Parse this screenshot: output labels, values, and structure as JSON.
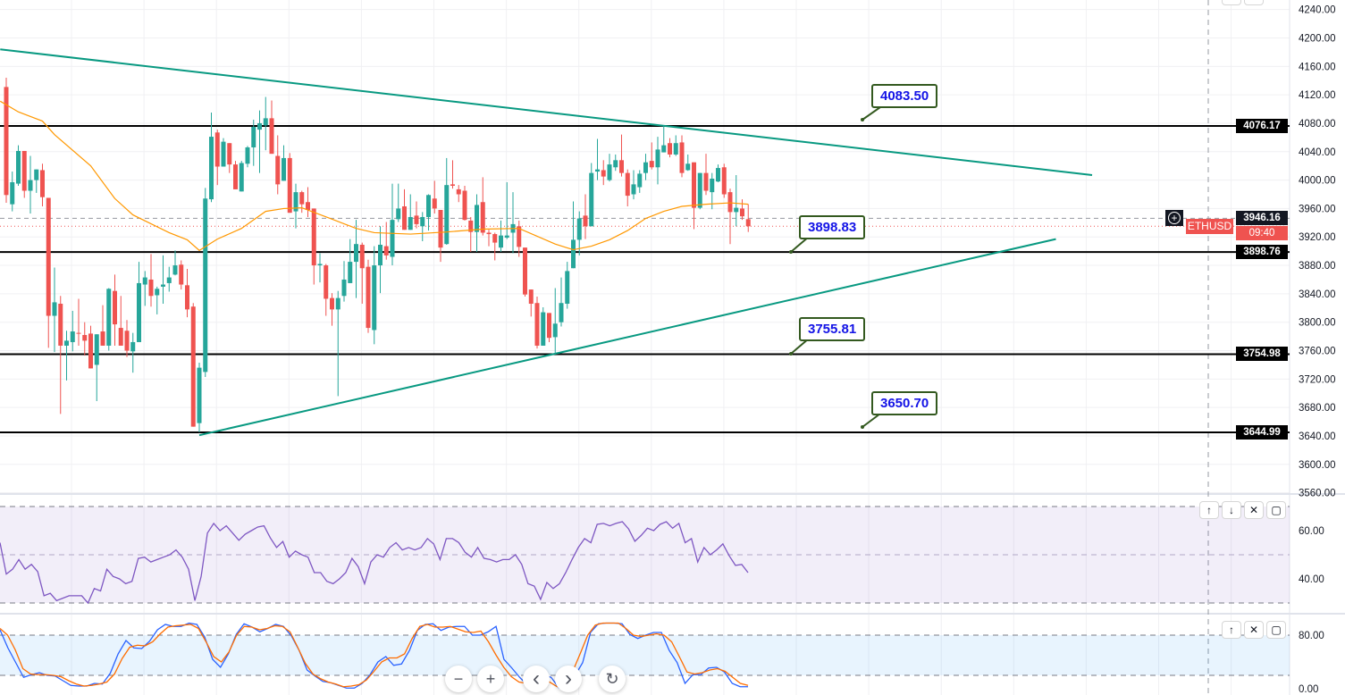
{
  "chart_data": {
    "type": "candlestick",
    "symbol": "ETHUSD",
    "colors": {
      "up": "#26a69a",
      "down": "#ef5350",
      "ma": "#ff9800",
      "trendline": "#089981",
      "level": "#000000",
      "rsi": "#7e57c2",
      "stoch_k": "#2962ff",
      "stoch_d": "#ff6d00",
      "callout_text": "#1414e6",
      "callout_border": "#33591f"
    },
    "price_axis": {
      "ticks": [
        "4240.00",
        "4200.00",
        "4160.00",
        "4120.00",
        "4080.00",
        "4040.00",
        "4000.00",
        "3960.00",
        "3920.00",
        "3880.00",
        "3840.00",
        "3800.00",
        "3760.00",
        "3720.00",
        "3680.00",
        "3640.00",
        "3600.00",
        "3560.00"
      ],
      "range": [
        3560,
        4240
      ]
    },
    "grid": true,
    "candles_ohlc": [
      [
        4131,
        4144,
        3968,
        3979
      ],
      [
        3966,
        4012,
        3956,
        3997
      ],
      [
        3995,
        4049,
        3992,
        4041
      ],
      [
        4041,
        4041,
        3975,
        3985
      ],
      [
        3985,
        4034,
        3953,
        4000
      ],
      [
        4000,
        4015,
        3982,
        4015
      ],
      [
        4014,
        4023,
        3963,
        3976
      ],
      [
        3975,
        3975,
        3764,
        3809
      ],
      [
        3809,
        3877,
        3758,
        3828
      ],
      [
        3826,
        3837,
        3671,
        3767
      ],
      [
        3767,
        3788,
        3718,
        3774
      ],
      [
        3772,
        3816,
        3759,
        3787
      ],
      [
        3785,
        3833,
        3767,
        3784
      ],
      [
        3782,
        3800,
        3753,
        3774
      ],
      [
        3784,
        3795,
        3735,
        3735
      ],
      [
        3740,
        3783,
        3689,
        3783
      ],
      [
        3787,
        3824,
        3767,
        3767
      ],
      [
        3767,
        3848,
        3760,
        3847
      ],
      [
        3844,
        3867,
        3767,
        3797
      ],
      [
        3792,
        3837,
        3767,
        3767
      ],
      [
        3788,
        3803,
        3751,
        3760
      ],
      [
        3759,
        3785,
        3729,
        3772
      ],
      [
        3772,
        3885,
        3772,
        3855
      ],
      [
        3853,
        3872,
        3823,
        3863
      ],
      [
        3860,
        3896,
        3822,
        3837
      ],
      [
        3838,
        3850,
        3811,
        3847
      ],
      [
        3850,
        3894,
        3826,
        3853
      ],
      [
        3855,
        3878,
        3843,
        3863
      ],
      [
        3867,
        3901,
        3866,
        3880
      ],
      [
        3881,
        3887,
        3846,
        3853
      ],
      [
        3852,
        3875,
        3807,
        3818
      ],
      [
        3822,
        3827,
        3653,
        3653
      ],
      [
        3658,
        3743,
        3645,
        3736
      ],
      [
        3730,
        3989,
        3723,
        3974
      ],
      [
        3973,
        4095,
        3969,
        4061
      ],
      [
        4067,
        4071,
        3993,
        4019
      ],
      [
        4019,
        4059,
        4019,
        4054
      ],
      [
        4052,
        4052,
        4010,
        4022
      ],
      [
        4022,
        4027,
        3987,
        3987
      ],
      [
        3984,
        4027,
        3984,
        4024
      ],
      [
        4023,
        4048,
        4018,
        4046
      ],
      [
        4046,
        4085,
        4020,
        4075
      ],
      [
        4071,
        4098,
        4010,
        4080
      ],
      [
        4077,
        4117,
        4042,
        4087
      ],
      [
        4087,
        4112,
        4037,
        4037
      ],
      [
        4034,
        4063,
        3980,
        3994
      ],
      [
        3999,
        4049,
        3999,
        4031
      ],
      [
        4031,
        4038,
        3954,
        3954
      ],
      [
        3956,
        3995,
        3932,
        3983
      ],
      [
        3983,
        3985,
        3954,
        3966
      ],
      [
        3969,
        3990,
        3948,
        3958
      ],
      [
        3960,
        3960,
        3853,
        3880
      ],
      [
        3880,
        3897,
        3856,
        3882
      ],
      [
        3880,
        3882,
        3809,
        3833
      ],
      [
        3834,
        3841,
        3795,
        3818
      ],
      [
        3818,
        3844,
        3696,
        3834
      ],
      [
        3837,
        3886,
        3829,
        3860
      ],
      [
        3855,
        3917,
        3855,
        3885
      ],
      [
        3885,
        3944,
        3834,
        3910
      ],
      [
        3909,
        3912,
        3826,
        3876
      ],
      [
        3878,
        3888,
        3785,
        3792
      ],
      [
        3789,
        3907,
        3769,
        3880
      ],
      [
        3880,
        3935,
        3841,
        3909
      ],
      [
        3907,
        3941,
        3888,
        3894
      ],
      [
        3892,
        3995,
        3880,
        3944
      ],
      [
        3945,
        3995,
        3941,
        3960
      ],
      [
        3963,
        3987,
        3930,
        3930
      ],
      [
        3930,
        3980,
        3930,
        3948
      ],
      [
        3950,
        3970,
        3932,
        3938
      ],
      [
        3935,
        3955,
        3914,
        3948
      ],
      [
        3948,
        3980,
        3929,
        3979
      ],
      [
        3974,
        3999,
        3953,
        3960
      ],
      [
        3958,
        3958,
        3885,
        3905
      ],
      [
        3910,
        4031,
        3909,
        3993
      ],
      [
        3994,
        4028,
        3988,
        3992
      ],
      [
        3987,
        3993,
        3969,
        3980
      ],
      [
        3985,
        3992,
        3943,
        3944
      ],
      [
        3943,
        3948,
        3899,
        3927
      ],
      [
        3927,
        3980,
        3899,
        3965
      ],
      [
        3969,
        4004,
        3922,
        3926
      ],
      [
        3926,
        3930,
        3907,
        3924
      ],
      [
        3924,
        3926,
        3887,
        3912
      ],
      [
        3905,
        3943,
        3899,
        3922
      ],
      [
        3919,
        3997,
        3917,
        3922
      ],
      [
        3926,
        3983,
        3897,
        3938
      ],
      [
        3935,
        3943,
        3892,
        3906
      ],
      [
        3905,
        3905,
        3836,
        3839
      ],
      [
        3846,
        3846,
        3808,
        3826
      ],
      [
        3827,
        3836,
        3763,
        3767
      ],
      [
        3767,
        3821,
        3767,
        3814
      ],
      [
        3813,
        3813,
        3772,
        3778
      ],
      [
        3779,
        3848,
        3756,
        3798
      ],
      [
        3800,
        3863,
        3794,
        3827
      ],
      [
        3826,
        3885,
        3819,
        3872
      ],
      [
        3876,
        3970,
        3876,
        3916
      ],
      [
        3916,
        3956,
        3894,
        3946
      ],
      [
        3950,
        3980,
        3917,
        3935
      ],
      [
        3935,
        4024,
        3935,
        4010
      ],
      [
        4012,
        4058,
        4000,
        4015
      ],
      [
        4014,
        4028,
        3993,
        4005
      ],
      [
        4000,
        4037,
        3998,
        4022
      ],
      [
        4018,
        4036,
        4013,
        4028
      ],
      [
        4028,
        4064,
        4005,
        4010
      ],
      [
        4010,
        4015,
        3963,
        3978
      ],
      [
        3980,
        4014,
        3973,
        3994
      ],
      [
        3990,
        4014,
        3982,
        4009
      ],
      [
        4010,
        4037,
        4000,
        4025
      ],
      [
        4027,
        4053,
        4015,
        4018
      ],
      [
        4018,
        4061,
        3994,
        4043
      ],
      [
        4039,
        4077,
        4039,
        4049
      ],
      [
        4052,
        4059,
        4032,
        4036
      ],
      [
        4036,
        4063,
        4034,
        4052
      ],
      [
        4053,
        4063,
        4004,
        4010
      ],
      [
        4014,
        4036,
        4013,
        4023
      ],
      [
        4025,
        4025,
        3931,
        3961
      ],
      [
        3961,
        4010,
        3959,
        4010
      ],
      [
        4010,
        4037,
        3979,
        3985
      ],
      [
        3983,
        4010,
        3959,
        4002
      ],
      [
        3998,
        4022,
        3997,
        4017
      ],
      [
        4018,
        4023,
        3975,
        3980
      ],
      [
        3983,
        3988,
        3910,
        3955
      ],
      [
        3955,
        4007,
        3935,
        3961
      ],
      [
        3960,
        3973,
        3944,
        3949
      ],
      [
        3945,
        3966,
        3927,
        3935
      ]
    ],
    "moving_average": [
      [
        -1,
        4111
      ],
      [
        2,
        4096
      ],
      [
        6,
        4083
      ],
      [
        8,
        4064
      ],
      [
        14,
        4020
      ],
      [
        18,
        3974
      ],
      [
        21,
        3951
      ],
      [
        27,
        3926
      ],
      [
        30,
        3916
      ],
      [
        32,
        3901
      ],
      [
        35,
        3917
      ],
      [
        39,
        3932
      ],
      [
        43,
        3956
      ],
      [
        46,
        3960
      ],
      [
        49,
        3961
      ],
      [
        54,
        3945
      ],
      [
        58,
        3932
      ],
      [
        61,
        3926
      ],
      [
        67,
        3924
      ],
      [
        73,
        3927
      ],
      [
        79,
        3931
      ],
      [
        85,
        3932
      ],
      [
        91,
        3910
      ],
      [
        94,
        3902
      ],
      [
        97,
        3907
      ],
      [
        100,
        3916
      ],
      [
        103,
        3929
      ],
      [
        106,
        3946
      ],
      [
        109,
        3956
      ],
      [
        112,
        3963
      ],
      [
        116,
        3966
      ],
      [
        120,
        3968
      ],
      [
        123,
        3966
      ]
    ],
    "horizontal_levels": [
      4076.17,
      3898.76,
      3754.98,
      3644.99
    ],
    "trendlines": [
      {
        "from": [
          -1,
          4184
        ],
        "to": [
          180,
          4007
        ]
      },
      {
        "from": [
          32,
          3641
        ],
        "to": [
          174,
          3917
        ]
      }
    ],
    "callouts": [
      "4083.50",
      "3898.83",
      "3755.81",
      "3650.70"
    ],
    "level_tags": [
      "4076.17",
      "3898.76",
      "3754.98",
      "3644.99"
    ],
    "last_price_line": 3946.16,
    "last_price_tag": "3946.16",
    "current_price_line": 3935,
    "symbol_tag": "ETHUSD",
    "countdown": "09:40",
    "rsi": {
      "ticks": [
        "60.00",
        "40.00"
      ],
      "bands": [
        70,
        50,
        30
      ],
      "values": [
        55,
        42,
        44,
        48,
        44,
        46,
        43,
        33,
        34,
        31,
        32,
        33,
        33,
        33,
        30,
        36,
        35,
        44,
        41,
        40,
        38,
        39,
        48.5,
        49,
        47,
        48,
        49,
        50,
        52,
        49,
        44,
        31,
        41,
        59,
        63,
        60,
        62,
        59,
        56,
        58.5,
        60,
        61.5,
        62,
        57,
        53,
        55.5,
        49,
        51.5,
        50,
        49,
        42.6,
        42.6,
        39,
        38,
        40,
        42.6,
        48.5,
        45,
        38,
        47,
        50,
        49,
        53,
        55,
        52,
        53,
        52,
        53,
        56.7,
        54.5,
        48,
        56.7,
        56.7,
        55,
        51,
        49,
        53,
        48.5,
        48,
        47,
        48,
        48,
        50,
        46,
        38,
        37,
        31.5,
        38.5,
        36,
        38,
        42.6,
        48,
        53,
        56.7,
        55,
        62.6,
        63,
        62,
        63,
        63.7,
        60.7,
        55.6,
        58,
        61,
        60,
        62.6,
        63.7,
        61,
        63,
        55,
        56.7,
        47,
        53,
        50,
        52,
        54.5,
        49.6,
        45.6,
        46,
        42.6
      ]
    },
    "stochastic": {
      "ticks": [
        "80.00",
        "0.00"
      ],
      "bands": [
        80,
        20
      ],
      "k": [
        88,
        61,
        39,
        17,
        21,
        24,
        20,
        19,
        12,
        5,
        4,
        4,
        8,
        7,
        23,
        52,
        72,
        61,
        60,
        71,
        88,
        96,
        93,
        93,
        98,
        96,
        77,
        44,
        32,
        52,
        81,
        97,
        92,
        85,
        90,
        96,
        93,
        79,
        57,
        28,
        19,
        11,
        9,
        5,
        1,
        1,
        8,
        21,
        40,
        48,
        35,
        37,
        57,
        87,
        96,
        97,
        87,
        92,
        93,
        93,
        80,
        80,
        85,
        93,
        44,
        31,
        17,
        5,
        7,
        21,
        17,
        1,
        0,
        19,
        39,
        84,
        97,
        98,
        98,
        97,
        81,
        75,
        80,
        84,
        84,
        57,
        39,
        8,
        21,
        21,
        31,
        32,
        25,
        8,
        3,
        3
      ],
      "d": [
        90,
        80,
        58,
        30,
        22,
        21,
        21,
        20,
        18,
        12,
        7,
        4,
        5,
        7,
        10,
        22,
        45,
        62,
        65,
        64,
        70,
        82,
        92,
        94,
        95,
        96,
        90,
        70,
        48,
        40,
        55,
        80,
        93,
        92,
        88,
        90,
        94,
        93,
        85,
        62,
        38,
        22,
        15,
        10,
        7,
        3,
        4,
        6,
        13,
        26,
        40,
        46,
        46,
        52,
        75,
        93,
        96,
        92,
        92,
        93,
        89,
        85,
        84,
        86,
        70,
        50,
        32,
        18,
        10,
        8,
        10,
        15,
        10,
        3,
        10,
        25,
        52,
        80,
        95,
        98,
        98,
        98,
        90,
        80,
        78,
        80,
        82,
        80,
        70,
        48,
        25,
        22,
        24,
        28,
        30,
        26,
        17,
        8,
        5
      ]
    }
  },
  "pane_buttons": {
    "up": "↑",
    "down": "↓",
    "close": "✕",
    "maximize": "▢"
  },
  "nav": {
    "zoom_out": "−",
    "zoom_in": "+",
    "scroll_left": "‹",
    "scroll_right": "›",
    "reset": "↻"
  },
  "add_button": "+"
}
